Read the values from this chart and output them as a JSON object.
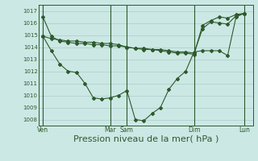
{
  "bg_color": "#cce8e4",
  "grid_color": "#aaccca",
  "line_color": "#2d5a2d",
  "xlabel": "Pression niveau de la mer( hPa )",
  "xlabel_fontsize": 8,
  "ylim": [
    1007.5,
    1017.5
  ],
  "yticks": [
    1008,
    1009,
    1010,
    1011,
    1012,
    1013,
    1014,
    1015,
    1016,
    1017
  ],
  "xtick_labels": [
    "Ven",
    "Mar",
    "Sam",
    "Dim",
    "Lun"
  ],
  "xtick_positions": [
    0,
    48,
    60,
    108,
    144
  ],
  "xlim": [
    -3,
    150
  ],
  "series1_x": [
    0,
    6,
    12,
    18,
    24,
    30,
    36,
    42,
    48,
    54,
    60,
    66,
    72,
    78,
    84,
    90,
    96,
    102,
    108,
    114,
    120,
    126,
    132,
    138,
    144
  ],
  "series1_y": [
    1016.5,
    1014.9,
    1014.5,
    1014.4,
    1014.3,
    1014.3,
    1014.2,
    1014.2,
    1014.1,
    1014.1,
    1014.0,
    1013.9,
    1013.8,
    1013.8,
    1013.7,
    1013.6,
    1013.5,
    1013.5,
    1013.4,
    1015.8,
    1016.2,
    1016.5,
    1016.4,
    1016.7,
    1016.8
  ],
  "series2_x": [
    0,
    6,
    12,
    18,
    24,
    30,
    36,
    42,
    48,
    54,
    60,
    66,
    72,
    78,
    84,
    90,
    96,
    102,
    108,
    114,
    120,
    126,
    132,
    138,
    144
  ],
  "series2_y": [
    1014.9,
    1014.7,
    1014.6,
    1014.5,
    1014.5,
    1014.4,
    1014.4,
    1014.3,
    1014.3,
    1014.2,
    1014.0,
    1013.9,
    1013.9,
    1013.8,
    1013.8,
    1013.7,
    1013.6,
    1013.6,
    1013.5,
    1015.5,
    1016.1,
    1016.0,
    1015.9,
    1016.6,
    1016.8
  ],
  "series3_x": [
    0,
    6,
    12,
    18,
    24,
    30,
    36,
    42,
    48,
    54,
    60,
    66,
    72,
    78,
    84,
    90,
    96,
    102,
    108,
    114,
    120,
    126,
    132,
    138,
    144
  ],
  "series3_y": [
    1014.9,
    1013.7,
    1012.6,
    1012.0,
    1011.9,
    1011.0,
    1009.8,
    1009.7,
    1009.8,
    1010.0,
    1010.4,
    1008.0,
    1007.9,
    1008.5,
    1009.0,
    1010.5,
    1011.4,
    1012.0,
    1013.6,
    1013.7,
    1013.7,
    1013.7,
    1013.3,
    1016.5,
    1016.8
  ],
  "vlines": [
    0,
    48,
    60,
    108,
    144
  ]
}
